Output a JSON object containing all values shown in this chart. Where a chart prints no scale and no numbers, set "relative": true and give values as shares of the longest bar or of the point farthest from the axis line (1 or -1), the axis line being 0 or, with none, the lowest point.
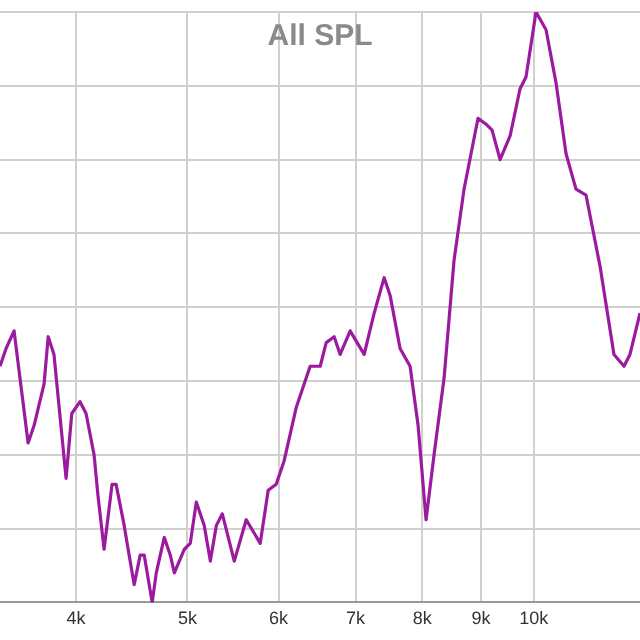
{
  "chart_data": {
    "type": "line",
    "title": "All SPL",
    "relative": true,
    "log": "x",
    "grid": true,
    "legend": false,
    "marker": "none",
    "line_style": "solid",
    "xlim": [
      3435,
      12373
    ],
    "xticks": [
      {
        "value": 4000,
        "label": "4k"
      },
      {
        "value": 5000,
        "label": "5k"
      },
      {
        "value": 6000,
        "label": "6k"
      },
      {
        "value": 7000,
        "label": "7k"
      },
      {
        "value": 8000,
        "label": "8k"
      },
      {
        "value": 9000,
        "label": "9k"
      },
      {
        "value": 10000,
        "label": "10k"
      }
    ],
    "series": [
      {
        "color": "#9b1a9e",
        "x": [
          3435,
          3477,
          3533,
          3634,
          3678,
          3752,
          3783,
          3827,
          3921,
          3966,
          4032,
          4081,
          4147,
          4180,
          4231,
          4299,
          4334,
          4405,
          4422,
          4494,
          4548,
          4585,
          4659,
          4697,
          4773,
          4831,
          4870,
          4968,
          5028,
          5089,
          5171,
          5234,
          5297,
          5361,
          5491,
          5624,
          5784,
          5877,
          5972,
          6068,
          6216,
          6392,
          6470,
          6522,
          6601,
          6707,
          6788,
          6925,
          7122,
          7266,
          7413,
          7502,
          7653,
          7808,
          7934,
          8062,
          8192,
          8358,
          8527,
          8699,
          8946,
          9091,
          9201,
          9350,
          9539,
          9731,
          9848,
          10047,
          10251,
          10458,
          10670,
          10885,
          11105,
          11420,
          11745,
          11983,
          12127,
          12373
        ],
        "values": [
          0.4,
          0.43,
          0.46,
          0.27,
          0.3,
          0.37,
          0.45,
          0.42,
          0.21,
          0.32,
          0.34,
          0.32,
          0.25,
          0.18,
          0.09,
          0.2,
          0.2,
          0.13,
          0.11,
          0.03,
          0.08,
          0.08,
          0,
          0.05,
          0.11,
          0.08,
          0.05,
          0.09,
          0.1,
          0.17,
          0.13,
          0.07,
          0.13,
          0.15,
          0.07,
          0.14,
          0.1,
          0.19,
          0.2,
          0.24,
          0.33,
          0.4,
          0.4,
          0.4,
          0.44,
          0.45,
          0.42,
          0.46,
          0.42,
          0.49,
          0.55,
          0.52,
          0.43,
          0.4,
          0.3,
          0.14,
          0.25,
          0.38,
          0.58,
          0.7,
          0.82,
          0.81,
          0.8,
          0.75,
          0.79,
          0.87,
          0.89,
          1,
          0.97,
          0.88,
          0.76,
          0.7,
          0.69,
          0.57,
          0.42,
          0.4,
          0.42,
          0.49
        ]
      }
    ]
  }
}
